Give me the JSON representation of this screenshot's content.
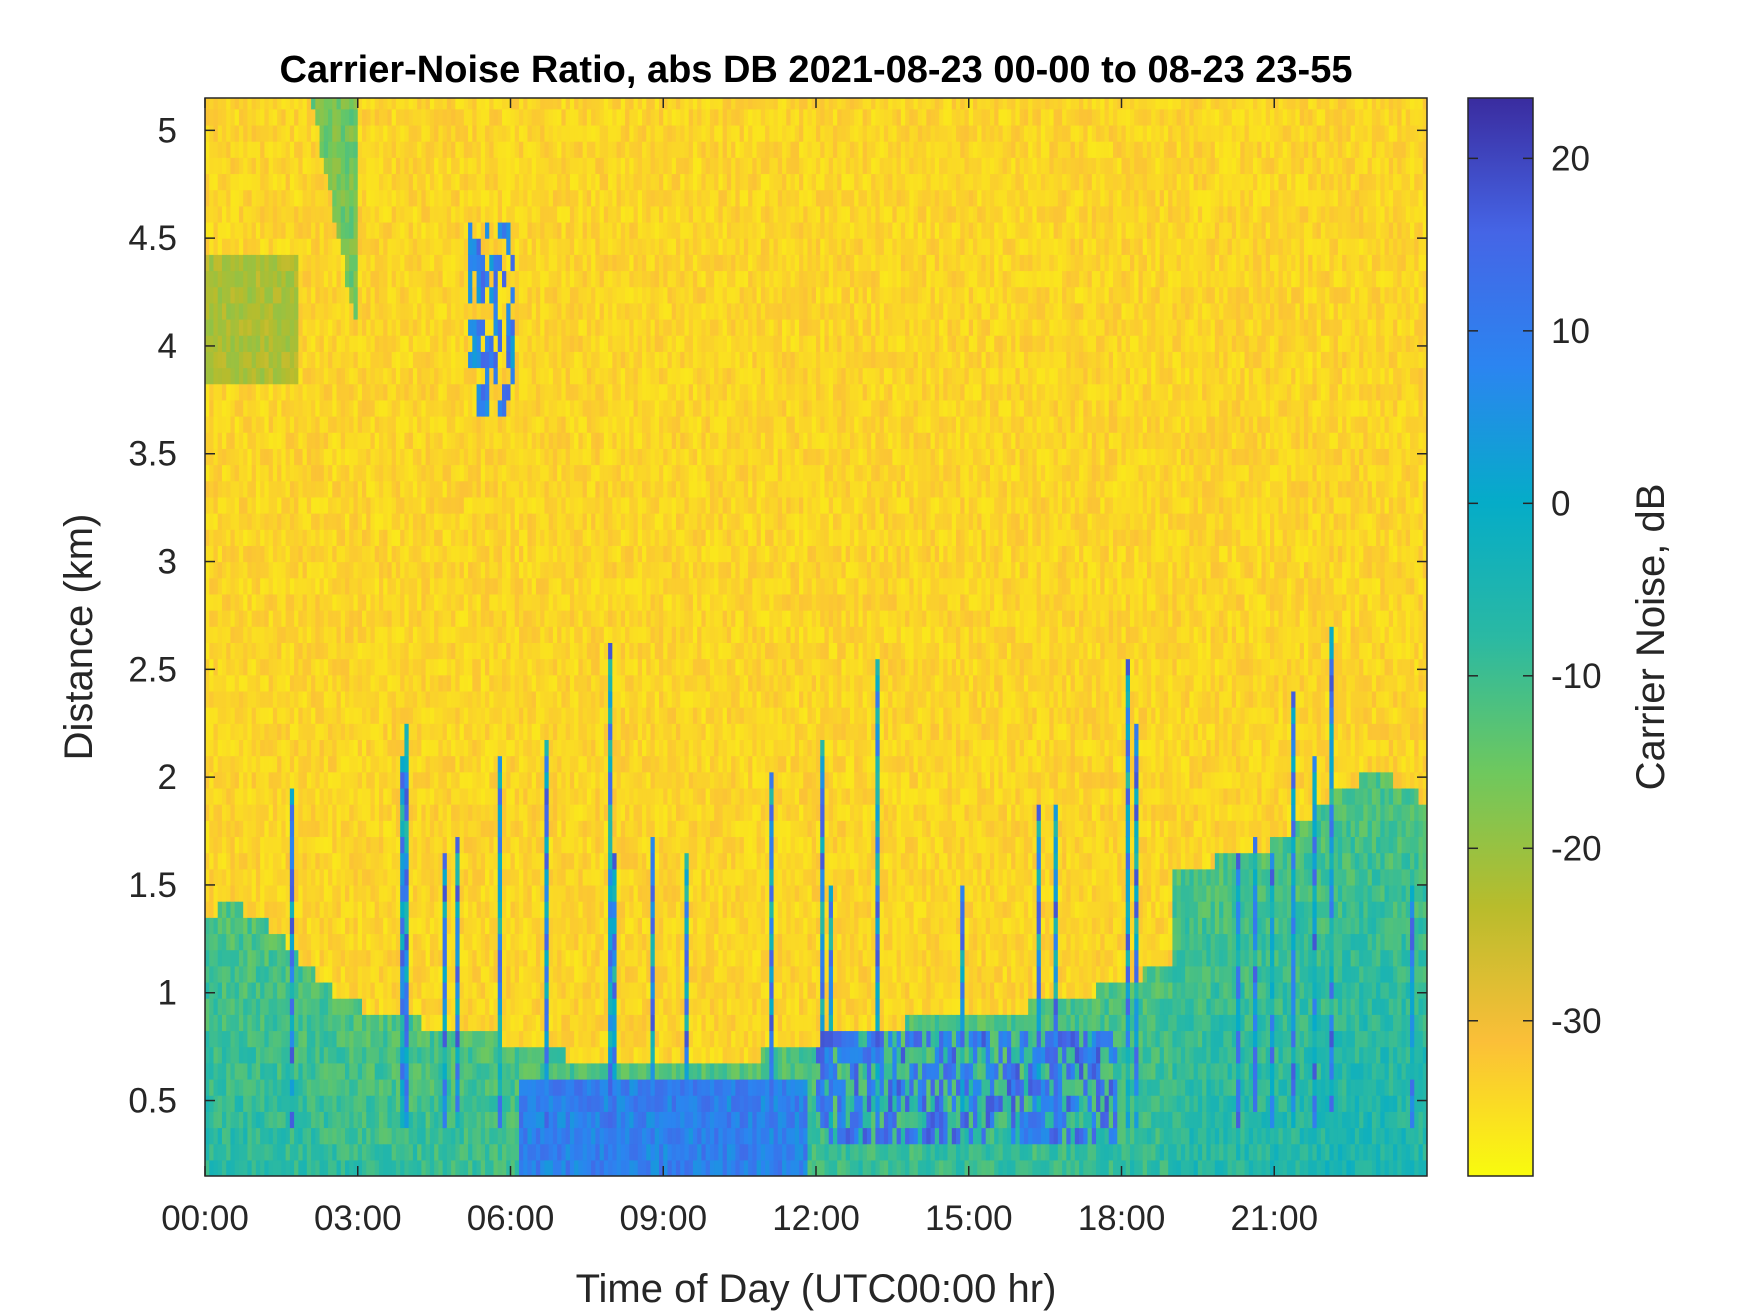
{
  "chart_data": {
    "type": "heatmap",
    "title": "Carrier-Noise Ratio, abs DB 2021-08-23 00-00 to 08-23 23-55",
    "xlabel": "Time of Day (UTC00:00 hr)",
    "ylabel": "Distance (km)",
    "colorbar_label": "Carrier Noise, dB",
    "xlim": [
      0,
      24
    ],
    "ylim": [
      0.15,
      5.15
    ],
    "clim": [
      -39,
      23.5
    ],
    "x_ticks": [
      {
        "value": 0,
        "label": "00:00"
      },
      {
        "value": 3,
        "label": "03:00"
      },
      {
        "value": 6,
        "label": "06:00"
      },
      {
        "value": 9,
        "label": "09:00"
      },
      {
        "value": 12,
        "label": "12:00"
      },
      {
        "value": 15,
        "label": "15:00"
      },
      {
        "value": 18,
        "label": "18:00"
      },
      {
        "value": 21,
        "label": "21:00"
      }
    ],
    "y_ticks": [
      {
        "value": 0.5,
        "label": "0.5"
      },
      {
        "value": 1,
        "label": "1"
      },
      {
        "value": 1.5,
        "label": "1.5"
      },
      {
        "value": 2,
        "label": "2"
      },
      {
        "value": 2.5,
        "label": "2.5"
      },
      {
        "value": 3,
        "label": "3"
      },
      {
        "value": 3.5,
        "label": "3.5"
      },
      {
        "value": 4,
        "label": "4"
      },
      {
        "value": 4.5,
        "label": "4.5"
      },
      {
        "value": 5,
        "label": "5"
      }
    ],
    "colorbar_ticks": [
      {
        "value": 20,
        "label": "20"
      },
      {
        "value": 10,
        "label": "10"
      },
      {
        "value": 0,
        "label": "0"
      },
      {
        "value": -10,
        "label": "-10"
      },
      {
        "value": -20,
        "label": "-20"
      },
      {
        "value": -30,
        "label": "-30"
      }
    ],
    "colormap": "parula-reversed",
    "colormap_stops": [
      "#f9fb0e",
      "#fbbf38",
      "#b8bc2c",
      "#6ec85e",
      "#2ab9a3",
      "#05acc8",
      "#2b85f0",
      "#4565e6",
      "#3a2c9f"
    ],
    "background_level": -34,
    "features": [
      {
        "name": "near-range boundary layer",
        "x_range": [
          0,
          24
        ],
        "y_range": [
          0.15,
          0.9
        ],
        "level": -14
      },
      {
        "name": "early plume",
        "x_range": [
          1.7,
          3.0
        ],
        "y_range": [
          3.9,
          5.15
        ],
        "level": -12
      },
      {
        "name": "midday strong return",
        "x_range": [
          6.2,
          11.8
        ],
        "y_range": [
          0.15,
          0.65
        ],
        "level": 12
      },
      {
        "name": "afternoon return",
        "x_range": [
          12.0,
          17.9
        ],
        "y_range": [
          0.3,
          0.85
        ],
        "level": 14
      },
      {
        "name": "evening layer",
        "x_range": [
          19.0,
          24
        ],
        "y_range": [
          0.15,
          2.0
        ],
        "level": -18
      }
    ]
  }
}
